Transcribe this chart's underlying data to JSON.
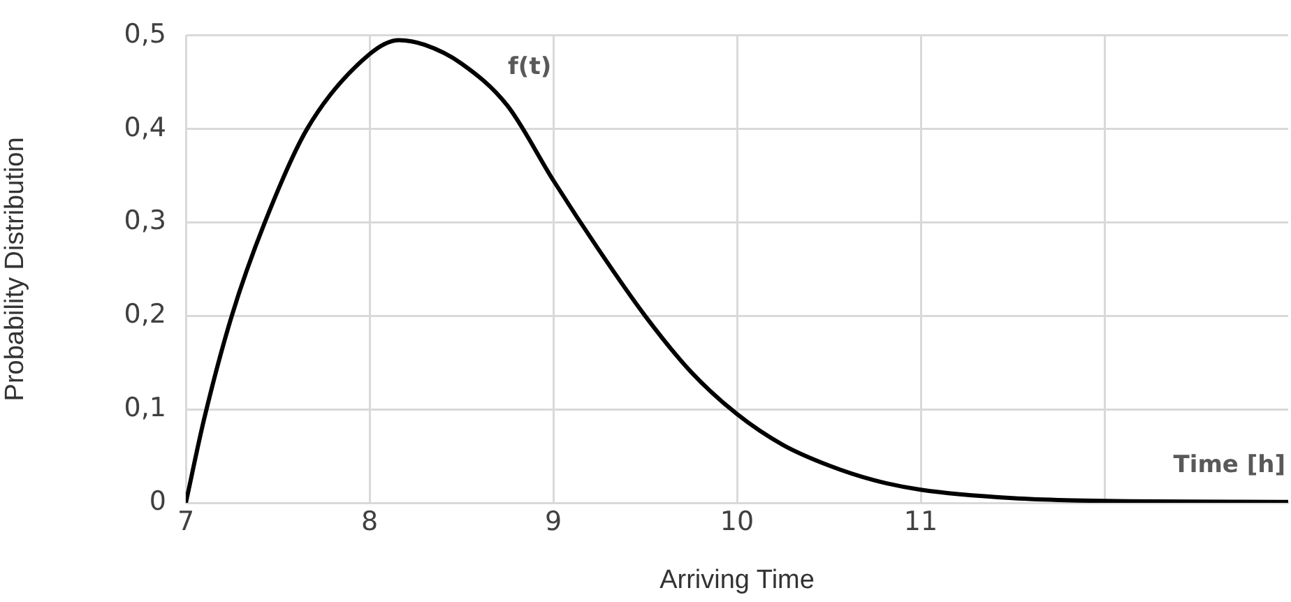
{
  "chart_data": {
    "type": "line",
    "xlabel": "Arriving Time",
    "ylabel": "Probability Distribution",
    "x": [
      7,
      7.1,
      7.25,
      7.43,
      7.66,
      8,
      8.16,
      8.3,
      8.5,
      8.75,
      9,
      9.25,
      9.5,
      9.75,
      10,
      10.25,
      10.5,
      10.75,
      11,
      11.5,
      12,
      13
    ],
    "series": [
      {
        "name": "f(t)",
        "color": "#000000",
        "values": [
          0,
          0.09,
          0.2,
          0.3,
          0.4,
          0.48,
          0.495,
          0.49,
          0.47,
          0.425,
          0.345,
          0.27,
          0.2,
          0.14,
          0.095,
          0.062,
          0.04,
          0.024,
          0.014,
          0.005,
          0.002,
          0.001
        ]
      }
    ],
    "xlim": [
      7,
      13
    ],
    "xticks": [
      7,
      8,
      9,
      10,
      11,
      {
        "value": 12,
        "label": null
      }
    ],
    "ylim": [
      0,
      0.5
    ],
    "yticks": [
      0,
      {
        "value": 0.1,
        "label": "0,1"
      },
      {
        "value": 0.2,
        "label": "0,2"
      },
      {
        "value": 0.3,
        "label": "0,3"
      },
      {
        "value": 0.4,
        "label": "0,4"
      },
      {
        "value": 0.5,
        "label": "0,5"
      }
    ],
    "annotations": [
      "Time [h]"
    ],
    "grid": true,
    "legend": false,
    "marker": "none",
    "line_style": "solid"
  }
}
